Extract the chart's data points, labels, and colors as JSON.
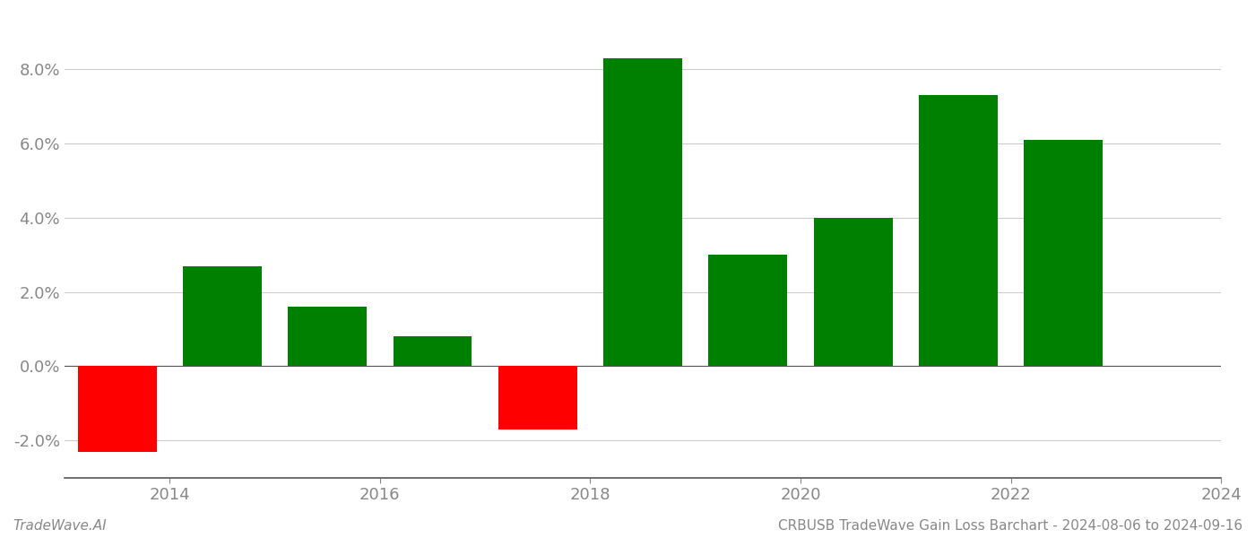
{
  "bar_centers": [
    2013.5,
    2014.5,
    2015.5,
    2016.5,
    2017.5,
    2018.5,
    2019.5,
    2020.5,
    2021.5,
    2022.5
  ],
  "values": [
    -0.023,
    0.027,
    0.016,
    0.008,
    -0.017,
    0.083,
    0.03,
    0.04,
    0.073,
    0.061
  ],
  "colors": [
    "#ff0000",
    "#008000",
    "#008000",
    "#008000",
    "#ff0000",
    "#008000",
    "#008000",
    "#008000",
    "#008000",
    "#008000"
  ],
  "xtick_positions": [
    2014,
    2016,
    2018,
    2020,
    2022,
    2024
  ],
  "xtick_labels": [
    "2014",
    "2016",
    "2018",
    "2020",
    "2022",
    "2024"
  ],
  "title": "CRBUSB TradeWave Gain Loss Barchart - 2024-08-06 to 2024-09-16",
  "footer_left": "TradeWave.AI",
  "xlim": [
    2013.0,
    2024.0
  ],
  "ylim": [
    -0.03,
    0.095
  ],
  "yticks": [
    -0.02,
    0.0,
    0.02,
    0.04,
    0.06,
    0.08
  ],
  "background_color": "#ffffff",
  "grid_color": "#cccccc",
  "bar_width": 0.75,
  "tick_label_color": "#888888",
  "footer_color": "#888888"
}
